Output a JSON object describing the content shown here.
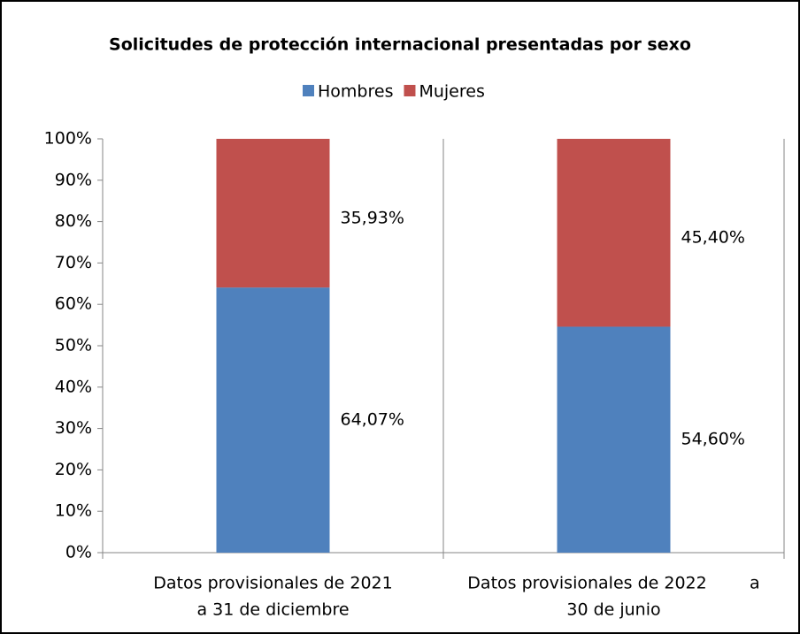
{
  "chart_data": {
    "type": "stacked_bar",
    "title": "Solicitudes de protección internacional presentadas por sexo",
    "categories": [
      [
        "Datos provisionales de 2021",
        "a 31 de diciembre"
      ],
      [
        "Datos provisionales de 2022        a",
        "30 de junio"
      ]
    ],
    "series": [
      {
        "name": "Hombres",
        "color": "#4f81bd",
        "values": [
          64.07,
          54.6
        ],
        "value_labels": [
          "64,07%",
          "54,60%"
        ]
      },
      {
        "name": "Mujeres",
        "color": "#c0504d",
        "values": [
          35.93,
          45.4
        ],
        "value_labels": [
          "35,93%",
          "45,40%"
        ]
      }
    ],
    "ylim": [
      0,
      100
    ],
    "yticks": [
      {
        "value": 0,
        "label": "0%"
      },
      {
        "value": 10,
        "label": "10%"
      },
      {
        "value": 20,
        "label": "20%"
      },
      {
        "value": 30,
        "label": "30%"
      },
      {
        "value": 40,
        "label": "40%"
      },
      {
        "value": 50,
        "label": "50%"
      },
      {
        "value": 60,
        "label": "60%"
      },
      {
        "value": 70,
        "label": "70%"
      },
      {
        "value": 80,
        "label": "80%"
      },
      {
        "value": 90,
        "label": "90%"
      },
      {
        "value": 100,
        "label": "100%"
      }
    ],
    "legend": "top"
  }
}
